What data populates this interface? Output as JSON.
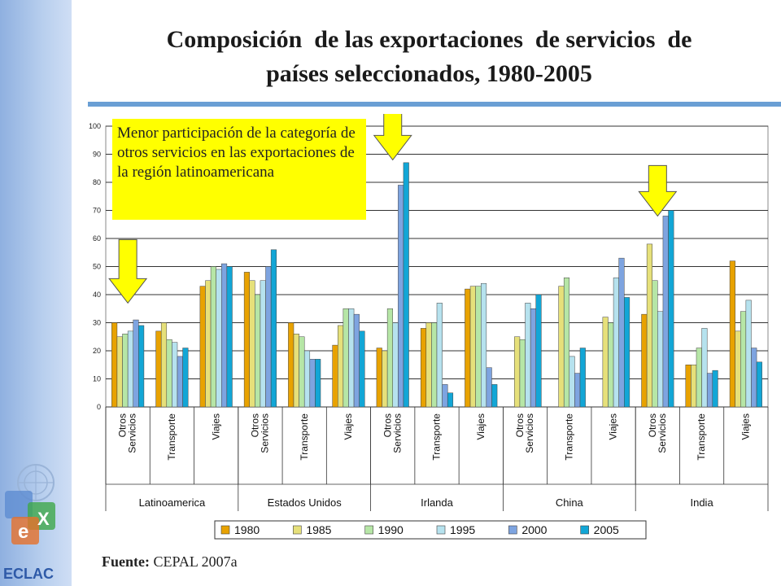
{
  "title": {
    "line1": "Composición  de las exportaciones  de servicios  de",
    "line2": "países seleccionados, 1980-2005"
  },
  "callout_text": "Menor participación de la categoría de otros servicios en las exportaciones de la región latinoamericana",
  "source": {
    "label": "Fuente:",
    "text": "CEPAL 2007a"
  },
  "logo_text": "ECLAC",
  "colors": {
    "1980": "#e8a200",
    "1985": "#e6e07a",
    "1990": "#b6e6a6",
    "1995": "#b6e2ee",
    "2000": "#7ea4e0",
    "2005": "#12a6d6",
    "arrow": "#ffff00",
    "callout": "#ffff00"
  },
  "chart_data": {
    "type": "bar",
    "ylim": [
      0,
      100
    ],
    "yticks": [
      0,
      10,
      20,
      30,
      40,
      50,
      60,
      70,
      80,
      90,
      100
    ],
    "grid": true,
    "legend_position": "bottom",
    "groups": [
      {
        "country": "Latinoamerica",
        "categories": [
          {
            "label": [
              "Otros",
              "Servicios"
            ],
            "values": [
              30,
              25,
              26,
              27,
              31,
              29
            ]
          },
          {
            "label": [
              "Transporte"
            ],
            "values": [
              27,
              30,
              24,
              23,
              18,
              21
            ]
          },
          {
            "label": [
              "Viajes"
            ],
            "values": [
              43,
              45,
              50,
              49,
              51,
              50
            ]
          }
        ]
      },
      {
        "country": "Estados Unidos",
        "categories": [
          {
            "label": [
              "Otros",
              "Servicios"
            ],
            "values": [
              48,
              45,
              40,
              45,
              50,
              56
            ]
          },
          {
            "label": [
              "Transporte"
            ],
            "values": [
              30,
              26,
              25,
              20,
              17,
              17
            ]
          },
          {
            "label": [
              "Viajes"
            ],
            "values": [
              22,
              29,
              35,
              35,
              33,
              27
            ]
          }
        ]
      },
      {
        "country": "Irlanda",
        "categories": [
          {
            "label": [
              "Otros",
              "Servicios"
            ],
            "values": [
              21,
              20,
              35,
              30,
              79,
              87
            ]
          },
          {
            "label": [
              "Transporte"
            ],
            "values": [
              28,
              30,
              30,
              37,
              8,
              5
            ]
          },
          {
            "label": [
              "Viajes"
            ],
            "values": [
              42,
              43,
              43,
              44,
              14,
              8
            ]
          }
        ]
      },
      {
        "country": "China",
        "categories": [
          {
            "label": [
              "Otros",
              "Servicios"
            ],
            "values": [
              0,
              25,
              24,
              37,
              35,
              40
            ]
          },
          {
            "label": [
              "Transporte"
            ],
            "values": [
              0,
              43,
              46,
              18,
              12,
              21
            ]
          },
          {
            "label": [
              "Viajes"
            ],
            "values": [
              0,
              32,
              30,
              46,
              53,
              39
            ]
          }
        ]
      },
      {
        "country": "India",
        "categories": [
          {
            "label": [
              "Otros",
              "Servicios"
            ],
            "values": [
              33,
              58,
              45,
              34,
              68,
              70
            ]
          },
          {
            "label": [
              "Transporte"
            ],
            "values": [
              15,
              15,
              21,
              28,
              12,
              13
            ]
          },
          {
            "label": [
              "Viajes"
            ],
            "values": [
              52,
              27,
              34,
              38,
              21,
              16
            ]
          }
        ]
      }
    ],
    "series_names": [
      "1980",
      "1985",
      "1990",
      "1995",
      "2000",
      "2005"
    ],
    "annotations": [
      {
        "type": "arrow",
        "group": "Latinoamerica",
        "category": "Otros Servicios"
      },
      {
        "type": "arrow",
        "group": "Irlanda",
        "category": "Otros Servicios"
      },
      {
        "type": "arrow",
        "group": "India",
        "category": "Otros Servicios"
      }
    ]
  }
}
